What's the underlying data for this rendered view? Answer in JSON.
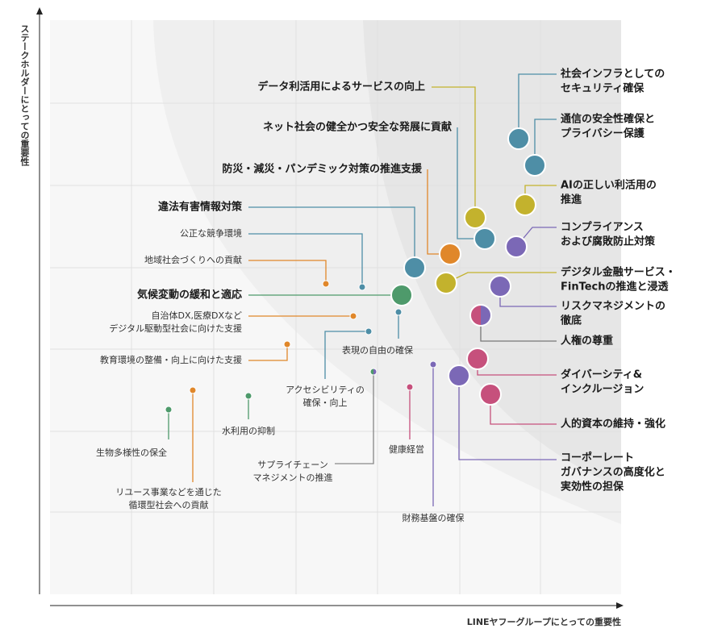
{
  "y_axis_label": "ステークホルダーにとっての重要性",
  "x_axis_label": "LINEヤフーグループにとっての重要性",
  "nodes": [
    {
      "lines": [
        "社会インフラとしての",
        "セキュリティ確保"
      ]
    },
    {
      "lines": [
        "通信の安全性確保と",
        "プライバシー保護"
      ]
    },
    {
      "lines": [
        "AIの正しい利活用の",
        "推進"
      ]
    },
    {
      "lines": [
        "コンプライアンス",
        "および腐敗防止対策"
      ]
    },
    {
      "lines": [
        "デジタル金融サービス・",
        "FinTechの推進と浸透"
      ]
    },
    {
      "lines": [
        "リスクマネジメントの",
        "徹底"
      ]
    },
    {
      "lines": [
        "人権の尊重"
      ]
    },
    {
      "lines": [
        "ダイバーシティ&",
        "インクルージョン"
      ]
    },
    {
      "lines": [
        "人的資本の維持・強化"
      ]
    },
    {
      "lines": [
        "コーポーレート",
        "ガバナンスの高度化と",
        "実効性の担保"
      ]
    },
    {
      "lines": [
        "データ利活用によるサービスの向上"
      ]
    },
    {
      "lines": [
        "ネット社会の健全かつ安全な発展に貢献"
      ]
    },
    {
      "lines": [
        "防災・減災・パンデミック対策の推進支援"
      ]
    },
    {
      "lines": [
        "違法有害情報対策"
      ]
    },
    {
      "lines": [
        "気候変動の緩和と適応"
      ]
    },
    {
      "lines": [
        "公正な競争環境"
      ]
    },
    {
      "lines": [
        "地域社会づくりへの貢献"
      ]
    },
    {
      "lines": [
        "自治体DX,医療DXなど",
        "デジタル駆動型社会に向けた支援"
      ]
    },
    {
      "lines": [
        "教育環境の整備・向上に向けた支援"
      ]
    },
    {
      "lines": [
        "表現の自由の確保"
      ]
    },
    {
      "lines": [
        "アクセシビリティの",
        "確保・向上"
      ]
    },
    {
      "lines": [
        "水利用の抑制"
      ]
    },
    {
      "lines": [
        "生物多様性の保全"
      ]
    },
    {
      "lines": [
        "リユース事業などを通じた",
        "循環型社会への貢献"
      ]
    },
    {
      "lines": [
        "サプライチェーン",
        "マネジメントの推進"
      ]
    },
    {
      "lines": [
        "健康経営"
      ]
    },
    {
      "lines": [
        "財務基盤の確保"
      ]
    }
  ]
}
